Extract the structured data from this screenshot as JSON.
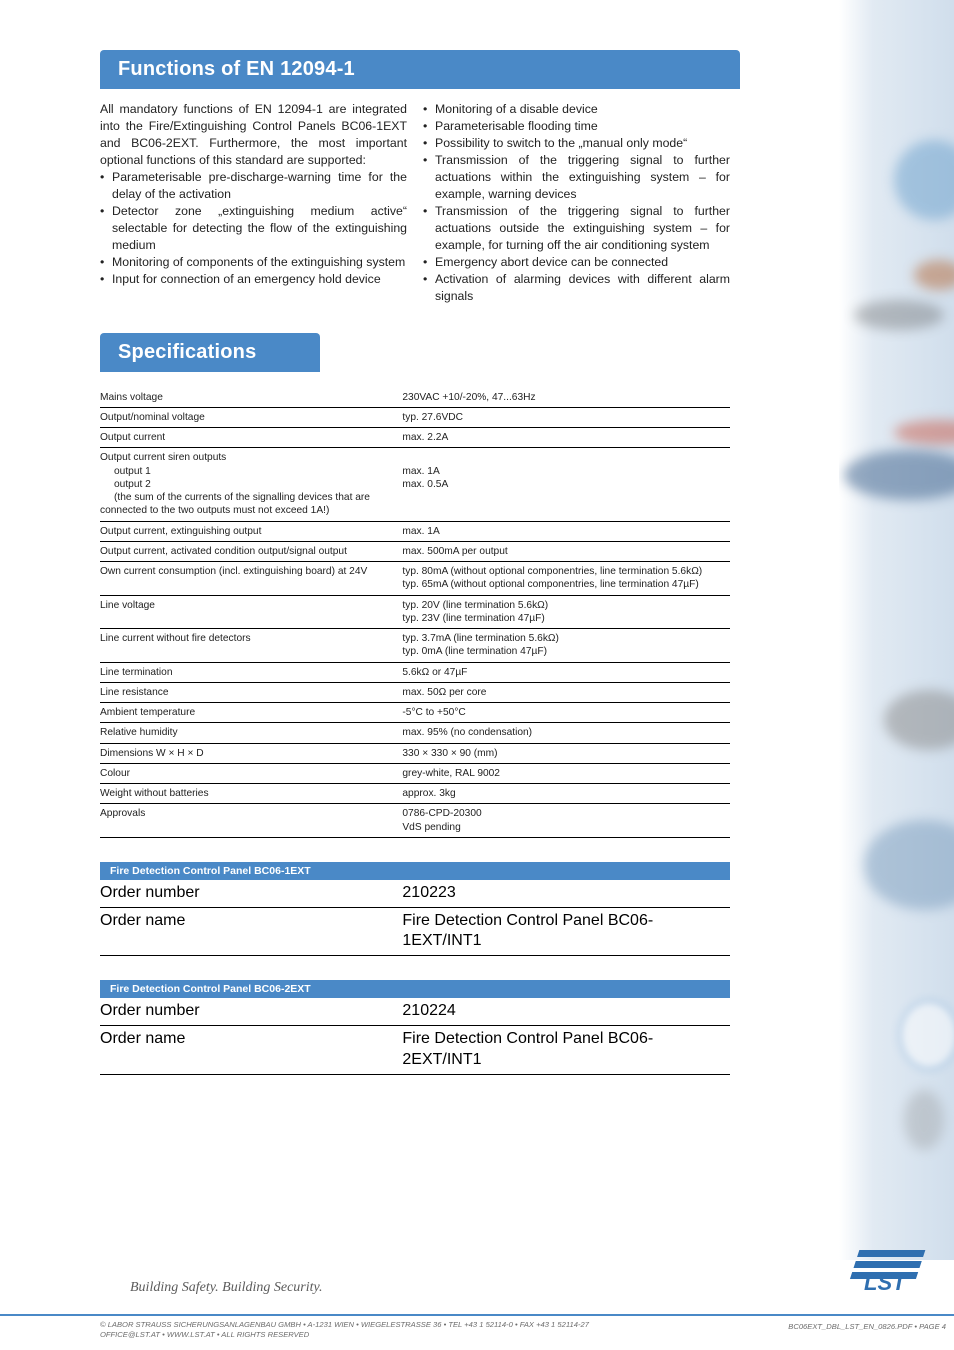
{
  "sections": {
    "functions_title": "Functions of EN 12094-1",
    "specs_title": "Specifications",
    "functions_left": {
      "intro": "All mandatory functions of EN 12094-1 are integrated into the Fire/Extinguishing Control Panels BC06-1EXT and BC06-2EXT. Furthermore, the most important optional functions of this standard are supported:",
      "items": [
        "Parameterisable pre-discharge-warning time for the delay of the activation",
        "Detector zone „extinguishing medium active“ selectable for detecting the flow of the extinguishing medium",
        "Monitoring of components of the extinguishing system",
        "Input for connection of an emergency hold device"
      ]
    },
    "functions_right": {
      "items": [
        "Monitoring of a disable device",
        "Parameterisable flooding time",
        "Possibility to switch to the „manual only mode“",
        "Transmission of the triggering signal to further actuations within the extinguishing system – for example, warning devices",
        "Transmission of the triggering signal to further actuations outside the extinguishing system – for example, for turning off the air conditioning system",
        "Emergency abort device can be connected",
        "Activation of alarming devices with different alarm signals"
      ]
    }
  },
  "specs": [
    {
      "label": "Mains voltage",
      "value": "230VAC +10/-20%, 47...63Hz"
    },
    {
      "label": "Output/nominal voltage",
      "value": "typ. 27.6VDC"
    },
    {
      "label": "Output current",
      "value": "max. 2.2A"
    },
    {
      "label": "Output current siren outputs",
      "sub1_label": "output 1",
      "sub1_value": "max. 1A",
      "sub2_label": "output 2",
      "sub2_value": "max. 0.5A",
      "note": "(the sum of the currents of the signalling devices that are connected to the two outputs must not exceed 1A!)"
    },
    {
      "label": "Output current, extinguishing output",
      "value": "max. 1A"
    },
    {
      "label": "Output current, activated condition output/signal output",
      "value": "max. 500mA per output"
    },
    {
      "label": "Own current consumption (incl. extinguishing board) at 24V",
      "value": "typ. 80mA (without optional componentries, line termination 5.6kΩ)\ntyp. 65mA (without optional componentries, line termination 47µF)"
    },
    {
      "label": "Line voltage",
      "value": "typ. 20V (line termination 5.6kΩ)\ntyp. 23V (line termination 47µF)"
    },
    {
      "label": "Line current without fire detectors",
      "value": "typ. 3.7mA (line termination 5.6kΩ)\ntyp. 0mA (line termination 47µF)"
    },
    {
      "label": "Line termination",
      "value": "5.6kΩ or 47µF"
    },
    {
      "label": "Line resistance",
      "value": "max. 50Ω per core"
    },
    {
      "label": "Ambient temperature",
      "value": "-5°C to +50°C"
    },
    {
      "label": "Relative humidity",
      "value": "max. 95% (no condensation)"
    },
    {
      "label": "Dimensions W × H × D",
      "value": "330 × 330 × 90 (mm)"
    },
    {
      "label": "Colour",
      "value": "grey-white, RAL 9002"
    },
    {
      "label": "Weight without batteries",
      "value": "approx. 3kg"
    },
    {
      "label": "Approvals",
      "value": "0786-CPD-20300\nVdS pending"
    }
  ],
  "order1": {
    "title": "Fire Detection Control Panel BC06-1EXT",
    "num_label": "Order number",
    "num_value": "210223",
    "name_label": "Order name",
    "name_value": "Fire Detection Control Panel BC06-1EXT/INT1"
  },
  "order2": {
    "title": "Fire Detection Control Panel BC06-2EXT",
    "num_label": "Order number",
    "num_value": "210224",
    "name_label": "Order name",
    "name_value": "Fire Detection Control Panel BC06-2EXT/INT1"
  },
  "tagline": "Building Safety. Building Security.",
  "footer_left_1": "© LABOR STRAUSS SICHERUNGSANLAGENBAU GMBH • A-1231 WIEN • WIEGELESTRASSE 36 • TEL +43 1 52114-0 • FAX +43 1 52114-27",
  "footer_left_2": "OFFICE@LST.AT • WWW.LST.AT • ALL RIGHTS RESERVED",
  "footer_right": "BC06EXT_DBL_LST_EN_0826.PDF • PAGE 4",
  "colors": {
    "brand_blue": "#4a89c7"
  }
}
